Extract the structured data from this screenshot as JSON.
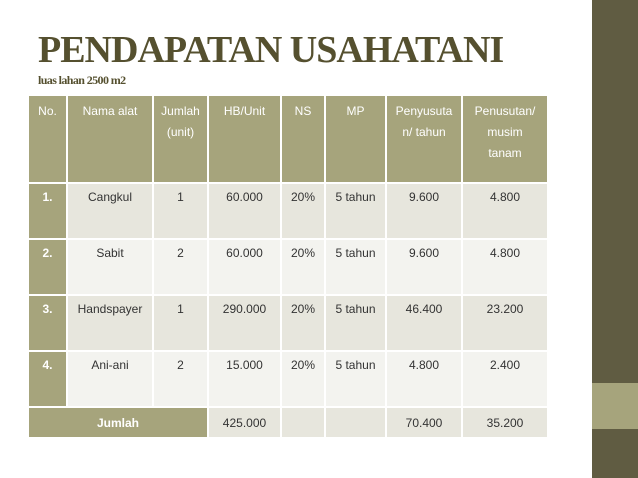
{
  "title": "PENDAPATAN USAHATANI",
  "subtitle": "luas lahan 2500 m2",
  "table": {
    "headers": [
      "No.",
      "Nama alat",
      "Jumlah (unit)",
      "HB/Unit",
      "NS",
      "MP",
      "Penyusutan/ tahun",
      "Penusutan/ musim tanam"
    ],
    "header_lines": [
      [
        "No."
      ],
      [
        "Nama alat"
      ],
      [
        "Jumlah",
        "(unit)"
      ],
      [
        "HB/Unit"
      ],
      [
        "NS"
      ],
      [
        "MP"
      ],
      [
        "Penyusuta",
        "n/ tahun"
      ],
      [
        "Penusutan/",
        "musim",
        "tanam"
      ]
    ],
    "rows": [
      [
        "1.",
        "Cangkul",
        "1",
        "60.000",
        "20%",
        "5 tahun",
        "9.600",
        "4.800"
      ],
      [
        "2.",
        "Sabit",
        "2",
        "60.000",
        "20%",
        "5 tahun",
        "9.600",
        "4.800"
      ],
      [
        "3.",
        "Handspayer",
        "1",
        "290.000",
        "20%",
        "5 tahun",
        "46.400",
        "23.200"
      ],
      [
        "4.",
        "Ani-ani",
        "2",
        "15.000",
        "20%",
        "5 tahun",
        "4.800",
        "2.400"
      ]
    ],
    "total": {
      "label": "Jumlah",
      "hb_unit": "425.000",
      "ns": "",
      "mp": "",
      "penyusutan_tahun": "70.400",
      "penyusutan_musim": "35.200"
    }
  },
  "colors": {
    "olive_dark": "#605c42",
    "olive_accent": "#a6a47c",
    "title": "#55502f",
    "row_band_1": "#e7e6dd",
    "row_band_2": "#f3f3ef"
  }
}
